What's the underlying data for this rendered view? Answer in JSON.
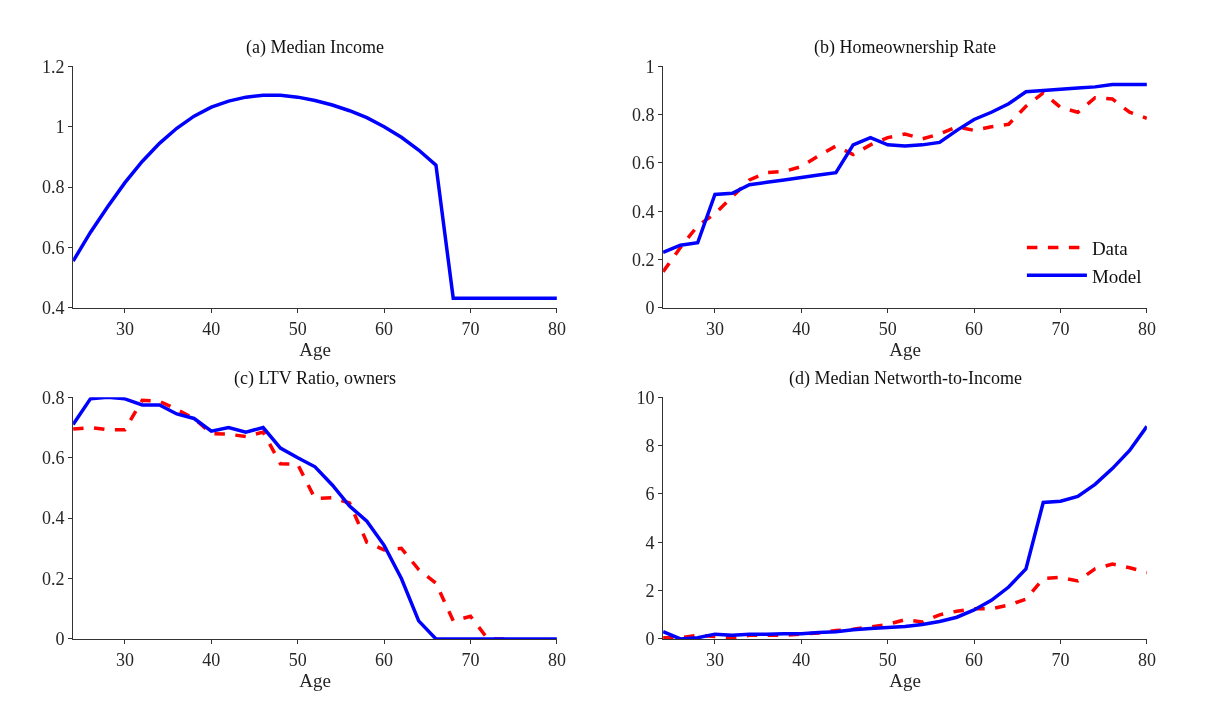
{
  "chart_data": [
    {
      "type": "line",
      "title": "(a) Median Income",
      "xlabel": "Age",
      "x": [
        24,
        26,
        28,
        30,
        32,
        34,
        36,
        38,
        40,
        42,
        44,
        46,
        48,
        50,
        52,
        54,
        56,
        58,
        60,
        62,
        64,
        66,
        68,
        70,
        72,
        74,
        76,
        78,
        80
      ],
      "xlim": [
        24,
        80
      ],
      "xticks": [
        30,
        40,
        50,
        60,
        70,
        80
      ],
      "ylim": [
        0.4,
        1.2
      ],
      "yticks": [
        0.4,
        0.6,
        0.8,
        1,
        1.2
      ],
      "series": [
        {
          "color": "#0000ff",
          "line_style": "solid",
          "values": [
            0.555,
            0.65,
            0.735,
            0.815,
            0.885,
            0.945,
            0.995,
            1.035,
            1.065,
            1.085,
            1.098,
            1.104,
            1.104,
            1.098,
            1.087,
            1.072,
            1.053,
            1.03,
            1.0,
            0.965,
            0.923,
            0.873,
            0.432,
            0.432,
            0.432,
            0.432,
            0.432,
            0.432,
            0.432
          ]
        }
      ]
    },
    {
      "type": "line",
      "title": "(b) Homeownership Rate",
      "xlabel": "Age",
      "x": [
        24,
        26,
        28,
        30,
        32,
        34,
        36,
        38,
        40,
        42,
        44,
        46,
        48,
        50,
        52,
        54,
        56,
        58,
        60,
        62,
        64,
        66,
        68,
        70,
        72,
        74,
        76,
        78,
        80
      ],
      "xlim": [
        24,
        80
      ],
      "xticks": [
        30,
        40,
        50,
        60,
        70,
        80
      ],
      "ylim": [
        0,
        1
      ],
      "yticks": [
        0,
        0.2,
        0.4,
        0.6,
        0.8,
        1
      ],
      "legend": "bottom right",
      "series": [
        {
          "name": "Data",
          "color": "#ff0000",
          "line_style": "dashed",
          "values": [
            0.15,
            0.25,
            0.34,
            0.39,
            0.46,
            0.53,
            0.56,
            0.565,
            0.585,
            0.63,
            0.67,
            0.635,
            0.675,
            0.705,
            0.72,
            0.7,
            0.72,
            0.75,
            0.735,
            0.75,
            0.76,
            0.835,
            0.89,
            0.83,
            0.81,
            0.87,
            0.865,
            0.81,
            0.785
          ]
        },
        {
          "name": "Model",
          "color": "#0000ff",
          "line_style": "solid",
          "values": [
            0.23,
            0.26,
            0.27,
            0.47,
            0.475,
            0.51,
            0.52,
            0.53,
            0.54,
            0.55,
            0.56,
            0.675,
            0.705,
            0.675,
            0.67,
            0.675,
            0.685,
            0.735,
            0.78,
            0.81,
            0.845,
            0.895,
            0.9,
            0.905,
            0.91,
            0.915,
            0.925,
            0.925,
            0.925
          ]
        }
      ]
    },
    {
      "type": "line",
      "title": "(c) LTV Ratio, owners",
      "xlabel": "Age",
      "x": [
        24,
        26,
        28,
        30,
        32,
        34,
        36,
        38,
        40,
        42,
        44,
        46,
        48,
        50,
        52,
        54,
        56,
        58,
        60,
        62,
        64,
        66,
        68,
        70,
        72,
        74,
        76,
        78,
        80
      ],
      "xlim": [
        24,
        80
      ],
      "xticks": [
        30,
        40,
        50,
        60,
        70,
        80
      ],
      "ylim": [
        0,
        0.8
      ],
      "yticks": [
        0,
        0.2,
        0.4,
        0.6,
        0.8
      ],
      "series": [
        {
          "color": "#ff0000",
          "line_style": "dashed",
          "values": [
            0.695,
            0.7,
            0.693,
            0.693,
            0.79,
            0.787,
            0.76,
            0.73,
            0.68,
            0.678,
            0.67,
            0.685,
            0.58,
            0.578,
            0.465,
            0.468,
            0.45,
            0.32,
            0.295,
            0.3,
            0.23,
            0.185,
            0.06,
            0.075,
            0,
            0,
            null,
            null,
            null
          ]
        },
        {
          "color": "#0000ff",
          "line_style": "solid",
          "values": [
            0.71,
            0.795,
            0.8,
            0.795,
            0.775,
            0.775,
            0.745,
            0.73,
            0.688,
            0.7,
            0.685,
            0.7,
            0.632,
            0.6,
            0.57,
            0.51,
            0.44,
            0.39,
            0.31,
            0.2,
            0.06,
            0,
            0,
            0,
            0,
            0,
            0,
            0,
            0
          ]
        }
      ]
    },
    {
      "type": "line",
      "title": "(d) Median Networth-to-Income",
      "xlabel": "Age",
      "x": [
        24,
        26,
        28,
        30,
        32,
        34,
        36,
        38,
        40,
        42,
        44,
        46,
        48,
        50,
        52,
        54,
        56,
        58,
        60,
        62,
        64,
        66,
        68,
        70,
        72,
        74,
        76,
        78,
        80
      ],
      "xlim": [
        24,
        80
      ],
      "xticks": [
        30,
        40,
        50,
        60,
        70,
        80
      ],
      "ylim": [
        0,
        10
      ],
      "yticks": [
        0,
        2,
        4,
        6,
        8,
        10
      ],
      "series": [
        {
          "color": "#ff0000",
          "line_style": "dashed",
          "values": [
            0.05,
            0.05,
            0.15,
            0.1,
            0.05,
            0.15,
            0.15,
            0.15,
            0.2,
            0.25,
            0.35,
            0.4,
            0.5,
            0.6,
            0.8,
            0.7,
            1.0,
            1.15,
            1.25,
            1.25,
            1.4,
            1.65,
            2.5,
            2.55,
            2.4,
            2.9,
            3.1,
            2.95,
            2.75
          ]
        },
        {
          "color": "#0000ff",
          "line_style": "solid",
          "values": [
            0.3,
            0.0,
            0.05,
            0.2,
            0.15,
            0.2,
            0.2,
            0.22,
            0.22,
            0.27,
            0.3,
            0.38,
            0.43,
            0.47,
            0.52,
            0.6,
            0.72,
            0.9,
            1.2,
            1.6,
            2.15,
            2.9,
            5.65,
            5.7,
            5.9,
            6.4,
            7.05,
            7.8,
            8.8
          ]
        }
      ]
    }
  ]
}
